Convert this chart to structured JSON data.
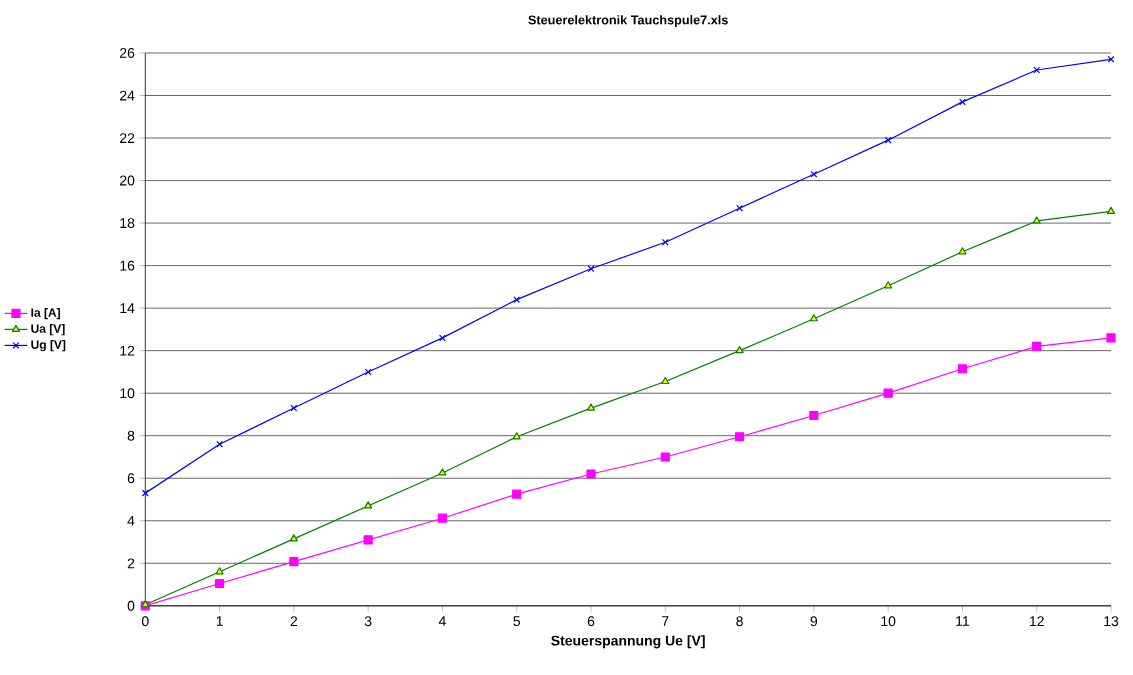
{
  "chart_data": {
    "type": "line",
    "title": "Steuerelektronik  Tauchspule7.xls",
    "xlabel": "Steuerspannung Ue [V]",
    "x": [
      0,
      1,
      2,
      3,
      4,
      5,
      6,
      7,
      8,
      9,
      10,
      11,
      12,
      13
    ],
    "series": [
      {
        "name": "Ia [A]",
        "color": "#ff00ff",
        "marker": "square",
        "values": [
          0,
          1.05,
          2.08,
          3.1,
          4.12,
          5.25,
          6.2,
          7.0,
          7.95,
          8.95,
          10.0,
          11.15,
          12.2,
          12.6
        ]
      },
      {
        "name": "Ua [V]",
        "color": "#008000",
        "marker": "triangle",
        "values": [
          0.05,
          1.6,
          3.15,
          4.7,
          6.25,
          7.95,
          9.3,
          10.55,
          12.0,
          13.5,
          15.05,
          16.65,
          18.1,
          18.55
        ]
      },
      {
        "name": "Ug [V]",
        "color": "#0000ff",
        "marker": "cross",
        "values": [
          5.3,
          7.6,
          9.3,
          11.0,
          12.6,
          14.4,
          15.85,
          17.1,
          18.7,
          20.3,
          21.9,
          23.7,
          25.2,
          25.7
        ]
      }
    ],
    "xlim": [
      0,
      13
    ],
    "xticks": [
      0,
      1,
      2,
      3,
      4,
      5,
      6,
      7,
      8,
      9,
      10,
      11,
      12,
      13
    ],
    "ylim": [
      0,
      26
    ],
    "yticks": [
      0,
      2,
      4,
      6,
      8,
      10,
      12,
      14,
      16,
      18,
      20,
      22,
      24,
      26
    ],
    "grid": "y",
    "legend": "left",
    "line_style": "solid"
  }
}
